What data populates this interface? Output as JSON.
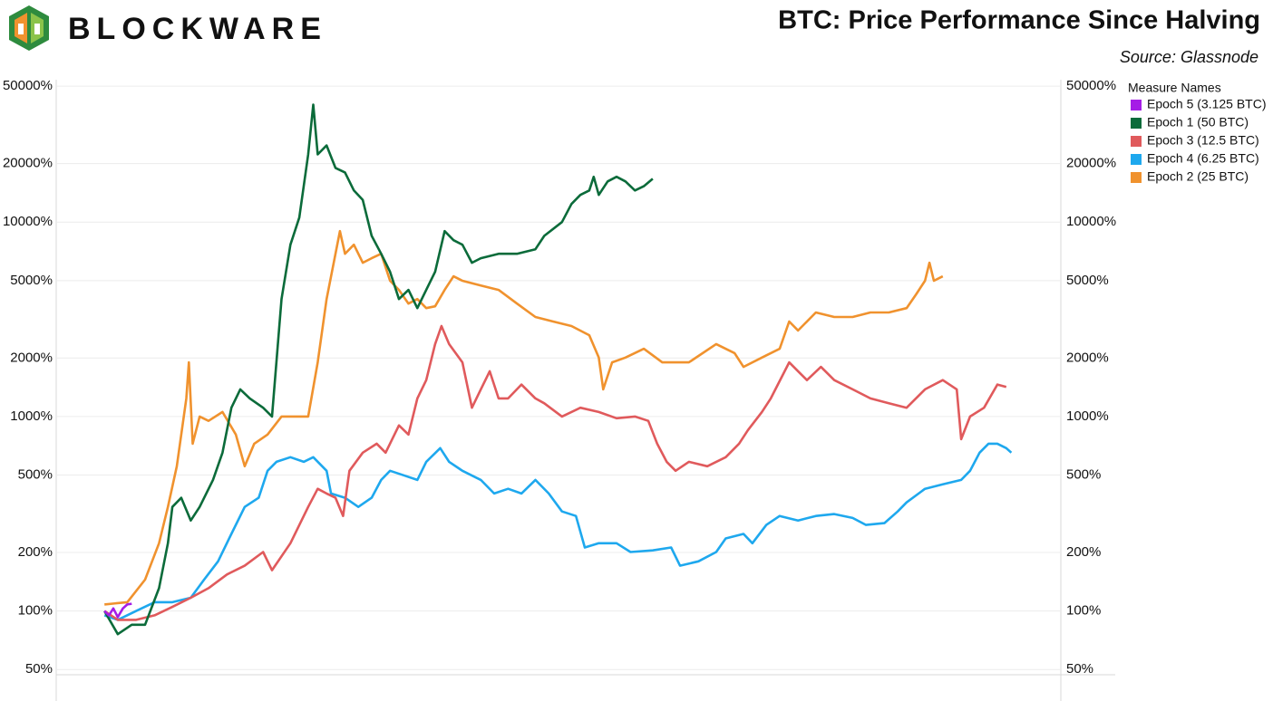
{
  "chart_data": {
    "type": "line",
    "brand": "BLOCKWARE",
    "title": "BTC: Price Performance Since Halving",
    "subtitle": "Source: Glassnode",
    "legend_title": "Measure Names",
    "legend_position": "right",
    "yscale": "log",
    "grid": true,
    "xlim": [
      -76,
      1507
    ],
    "ylim": [
      47,
      54000
    ],
    "yticks": [
      {
        "value": 50,
        "label": "50%"
      },
      {
        "value": 100,
        "label": "100%"
      },
      {
        "value": 200,
        "label": "200%"
      },
      {
        "value": 500,
        "label": "500%"
      },
      {
        "value": 1000,
        "label": "1000%"
      },
      {
        "value": 2000,
        "label": "2000%"
      },
      {
        "value": 5000,
        "label": "5000%"
      },
      {
        "value": 10000,
        "label": "10000%"
      },
      {
        "value": 20000,
        "label": "20000%"
      },
      {
        "value": 50000,
        "label": "50000%"
      }
    ],
    "series": [
      {
        "name": "Epoch 5 (3.125 BTC)",
        "color": "#a51de6",
        "x": [
          0,
          7,
          14,
          21,
          29,
          36,
          43
        ],
        "values": [
          100,
          95,
          103,
          93,
          103,
          108,
          109
        ]
      },
      {
        "name": "Epoch 1 (50 BTC)",
        "color": "#0b6b3a",
        "x": [
          0,
          21,
          43,
          64,
          86,
          100,
          107,
          121,
          136,
          150,
          171,
          186,
          200,
          214,
          229,
          250,
          264,
          279,
          293,
          307,
          321,
          329,
          336,
          350,
          364,
          379,
          393,
          407,
          421,
          436,
          450,
          464,
          479,
          493,
          507,
          521,
          536,
          550,
          564,
          579,
          593,
          621,
          650,
          679,
          693,
          721,
          736,
          750,
          764,
          771,
          779,
          793,
          807,
          821,
          836,
          850,
          864
        ],
        "values": [
          100,
          76,
          85,
          85,
          131,
          223,
          343,
          382,
          292,
          343,
          472,
          652,
          1110,
          1380,
          1240,
          1110,
          1000,
          4020,
          7650,
          10550,
          22300,
          40200,
          22300,
          24800,
          19000,
          18000,
          14550,
          13000,
          8500,
          6870,
          5550,
          4020,
          4480,
          3610,
          4480,
          5550,
          8990,
          8070,
          7650,
          6180,
          6520,
          6870,
          6870,
          7250,
          8500,
          10000,
          12400,
          13800,
          14550,
          17100,
          13800,
          16200,
          17100,
          16200,
          14550,
          15300,
          16700
        ]
      },
      {
        "name": "Epoch 3 (12.5 BTC)",
        "color": "#e05a5c",
        "x": [
          0,
          21,
          50,
          79,
          107,
          136,
          164,
          193,
          221,
          250,
          264,
          293,
          321,
          336,
          350,
          364,
          376,
          386,
          407,
          429,
          443,
          464,
          479,
          493,
          507,
          521,
          531,
          543,
          564,
          579,
          593,
          607,
          621,
          636,
          657,
          679,
          693,
          721,
          750,
          779,
          807,
          836,
          857,
          871,
          886,
          900,
          921,
          950,
          979,
          1000,
          1014,
          1036,
          1050,
          1079,
          1093,
          1107,
          1129,
          1150,
          1179,
          1207,
          1236,
          1264,
          1293,
          1321,
          1343,
          1350,
          1364,
          1386,
          1407,
          1421
        ],
        "values": [
          100,
          90,
          90,
          95,
          105,
          117,
          131,
          154,
          171,
          201,
          162,
          223,
          343,
          425,
          402,
          382,
          308,
          526,
          652,
          725,
          652,
          900,
          808,
          1240,
          1540,
          2360,
          2920,
          2360,
          1900,
          1110,
          1380,
          1710,
          1240,
          1240,
          1460,
          1240,
          1170,
          1000,
          1110,
          1055,
          980,
          1000,
          950,
          725,
          585,
          526,
          585,
          555,
          618,
          725,
          852,
          1055,
          1240,
          1900,
          1710,
          1540,
          1800,
          1540,
          1380,
          1240,
          1170,
          1110,
          1380,
          1540,
          1380,
          765,
          1000,
          1110,
          1460,
          1420
        ]
      },
      {
        "name": "Epoch 4 (6.25 BTC)",
        "color": "#1ea8ee",
        "x": [
          0,
          21,
          50,
          79,
          107,
          136,
          157,
          179,
          200,
          221,
          243,
          257,
          271,
          293,
          314,
          329,
          350,
          357,
          379,
          400,
          421,
          436,
          450,
          471,
          493,
          507,
          529,
          543,
          564,
          593,
          614,
          636,
          657,
          679,
          700,
          721,
          743,
          757,
          779,
          807,
          829,
          864,
          893,
          907,
          936,
          964,
          979,
          1007,
          1021,
          1043,
          1064,
          1093,
          1121,
          1150,
          1179,
          1200,
          1229,
          1250,
          1264,
          1293,
          1321,
          1350,
          1364,
          1379,
          1393,
          1407,
          1421,
          1429
        ],
        "values": [
          95,
          90,
          100,
          111,
          111,
          117,
          145,
          180,
          249,
          343,
          382,
          526,
          585,
          618,
          585,
          618,
          526,
          402,
          382,
          343,
          382,
          472,
          526,
          499,
          472,
          585,
          688,
          585,
          526,
          472,
          402,
          425,
          402,
          472,
          402,
          325,
          308,
          212,
          223,
          223,
          201,
          205,
          212,
          171,
          180,
          201,
          236,
          249,
          223,
          277,
          308,
          292,
          308,
          315,
          301,
          277,
          283,
          325,
          362,
          425,
          448,
          472,
          526,
          652,
          725,
          725,
          688,
          652
        ]
      },
      {
        "name": "Epoch 2 (25 BTC)",
        "color": "#f0922e",
        "x": [
          0,
          36,
          64,
          86,
          100,
          114,
          129,
          133,
          139,
          150,
          164,
          186,
          207,
          221,
          236,
          257,
          279,
          307,
          321,
          336,
          350,
          364,
          371,
          379,
          393,
          407,
          421,
          436,
          450,
          464,
          479,
          493,
          507,
          521,
          536,
          550,
          564,
          593,
          621,
          650,
          679,
          707,
          736,
          764,
          779,
          786,
          800,
          821,
          850,
          879,
          921,
          964,
          993,
          1007,
          1036,
          1064,
          1079,
          1093,
          1121,
          1150,
          1179,
          1207,
          1236,
          1264,
          1279,
          1293,
          1300,
          1307,
          1321
        ],
        "values": [
          108,
          111,
          145,
          223,
          343,
          555,
          1240,
          1900,
          725,
          1000,
          950,
          1055,
          808,
          555,
          725,
          808,
          1000,
          1000,
          1000,
          1900,
          4020,
          6870,
          8990,
          6870,
          7650,
          6180,
          6520,
          6870,
          4990,
          4480,
          3810,
          4020,
          3610,
          3690,
          4480,
          5260,
          4990,
          4720,
          4480,
          3810,
          3250,
          3080,
          2920,
          2620,
          2010,
          1380,
          1900,
          2010,
          2230,
          1900,
          1900,
          2360,
          2120,
          1800,
          2010,
          2230,
          3080,
          2770,
          3430,
          3250,
          3250,
          3430,
          3430,
          3610,
          4250,
          4990,
          6180,
          4990,
          5260
        ]
      }
    ]
  }
}
